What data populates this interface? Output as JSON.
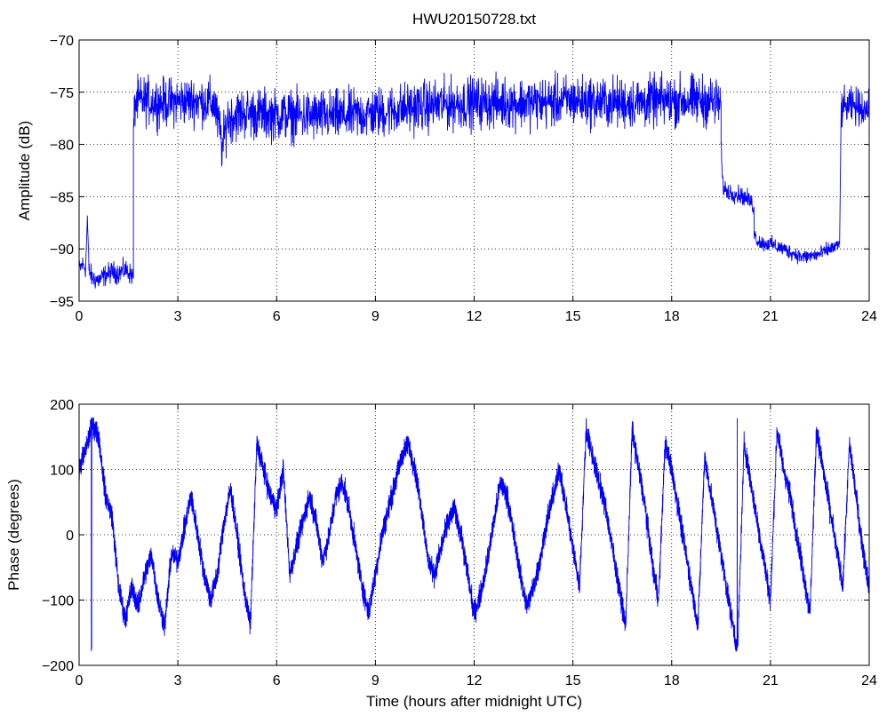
{
  "chart_data": [
    {
      "type": "line",
      "title": "HWU20150728.txt",
      "xlabel": "",
      "ylabel": "Amplitude (dB)",
      "xlim": [
        0,
        24
      ],
      "ylim": [
        -95,
        -70
      ],
      "xticks": [
        0,
        3,
        6,
        9,
        12,
        15,
        18,
        21,
        24
      ],
      "yticks": [
        -95,
        -90,
        -85,
        -80,
        -75,
        -70
      ],
      "grid": true,
      "color": "#0000ff",
      "series": [
        {
          "segments": [
            {
              "x": [
                0.0,
                0.1,
                0.2,
                0.25,
                0.3,
                0.4,
                0.6,
                0.8,
                1.0,
                1.2,
                1.4,
                1.6,
                1.65
              ],
              "y": [
                -92.0,
                -91.5,
                -91.8,
                -87.0,
                -92.0,
                -92.8,
                -93.0,
                -92.5,
                -92.2,
                -92.3,
                -92.0,
                -92.5,
                -92.8
              ],
              "noise": 0.7
            },
            {
              "x": [
                1.65,
                1.7,
                2.0,
                2.5,
                3.0,
                3.5,
                4.0,
                4.15
              ],
              "y": [
                -79.0,
                -76.0,
                -75.8,
                -76.0,
                -75.9,
                -75.8,
                -76.0,
                -76.2
              ],
              "noise": 1.6
            },
            {
              "x": [
                4.15,
                4.3,
                4.35,
                4.5,
                5.0,
                6.0,
                7.0,
                8.0,
                9.0,
                10.0,
                11.0,
                12.0,
                13.0,
                14.0,
                15.0,
                16.0,
                17.0,
                18.0,
                19.0,
                19.5
              ],
              "y": [
                -77.0,
                -79.0,
                -80.5,
                -77.5,
                -77.0,
                -77.2,
                -77.3,
                -77.3,
                -77.0,
                -76.5,
                -76.2,
                -76.0,
                -76.0,
                -76.0,
                -75.8,
                -76.0,
                -76.0,
                -75.8,
                -75.8,
                -76.0
              ],
              "noise": 1.7
            },
            {
              "x": [
                19.5,
                19.55,
                19.7,
                20.0,
                20.2,
                20.4,
                20.5
              ],
              "y": [
                -80.0,
                -84.0,
                -84.5,
                -84.8,
                -85.0,
                -85.5,
                -86.0
              ],
              "noise": 0.6
            },
            {
              "x": [
                20.5,
                20.6,
                20.8,
                21.0,
                21.2,
                21.4,
                21.6,
                22.0,
                22.5,
                22.8,
                23.0,
                23.1
              ],
              "y": [
                -88.5,
                -89.2,
                -89.5,
                -89.5,
                -89.8,
                -90.0,
                -90.3,
                -90.8,
                -90.5,
                -90.0,
                -89.8,
                -89.5
              ],
              "noise": 0.5
            },
            {
              "x": [
                23.15,
                23.2,
                23.5,
                23.8,
                24.0
              ],
              "y": [
                -77.0,
                -76.5,
                -76.3,
                -76.5,
                -76.8
              ],
              "noise": 1.2
            }
          ]
        }
      ]
    },
    {
      "type": "line",
      "title": "",
      "xlabel": "Time (hours after midnight UTC)",
      "ylabel": "Phase (degrees)",
      "xlim": [
        0,
        24
      ],
      "ylim": [
        -200,
        200
      ],
      "xticks": [
        0,
        3,
        6,
        9,
        12,
        15,
        18,
        21,
        24
      ],
      "yticks": [
        -200,
        -100,
        0,
        100,
        200
      ],
      "grid": true,
      "wrap": [
        -180,
        180
      ],
      "color": "#0000ff",
      "series": [
        {
          "x": [
            0.0,
            0.2,
            0.4,
            0.6,
            0.8,
            1.0,
            1.2,
            1.4,
            1.6,
            1.8,
            2.0,
            2.2,
            2.4,
            2.6,
            2.8,
            3.0,
            3.2,
            3.4,
            3.6,
            3.8,
            4.0,
            4.2,
            4.4,
            4.6,
            4.8,
            5.0,
            5.2,
            5.4,
            5.6,
            5.8,
            6.0,
            6.2,
            6.4,
            6.6,
            6.8,
            7.0,
            7.2,
            7.4,
            7.6,
            7.8,
            8.0,
            8.2,
            8.4,
            8.6,
            8.8,
            9.0,
            9.2,
            9.4,
            9.6,
            9.8,
            10.0,
            10.2,
            10.4,
            10.6,
            10.8,
            11.0,
            11.2,
            11.4,
            11.6,
            11.8,
            12.0,
            12.2,
            12.4,
            12.6,
            12.8,
            13.0,
            13.2,
            13.4,
            13.6,
            13.8,
            14.0,
            14.2,
            14.4,
            14.6,
            14.8,
            15.0,
            15.2,
            15.4,
            15.6,
            15.8,
            16.0,
            16.2,
            16.4,
            16.6,
            16.8,
            17.0,
            17.2,
            17.4,
            17.6,
            17.8,
            18.0,
            18.2,
            18.4,
            18.6,
            18.8,
            19.0,
            19.2,
            19.4,
            19.6,
            19.8,
            20.0,
            20.2,
            20.4,
            20.6,
            20.8,
            21.0,
            21.2,
            21.4,
            21.6,
            21.8,
            22.0,
            22.2,
            22.4,
            22.6,
            22.8,
            23.0,
            23.2,
            23.4,
            23.6,
            23.8,
            24.0
          ],
          "y": [
            100,
            130,
            170,
            150,
            60,
            30,
            -80,
            -130,
            -80,
            -110,
            -60,
            -30,
            -100,
            -140,
            -30,
            -40,
            10,
            60,
            0,
            -60,
            -100,
            -60,
            20,
            70,
            0,
            -80,
            -140,
            140,
            100,
            60,
            40,
            100,
            -60,
            -20,
            20,
            60,
            20,
            -40,
            0,
            60,
            80,
            40,
            -20,
            -80,
            -120,
            -60,
            0,
            40,
            80,
            120,
            140,
            100,
            40,
            -40,
            -60,
            -20,
            20,
            40,
            0,
            -60,
            -120,
            -90,
            -40,
            20,
            80,
            60,
            0,
            -60,
            -110,
            -80,
            -40,
            20,
            60,
            100,
            40,
            -20,
            -80,
            160,
            120,
            80,
            40,
            -20,
            -80,
            -140,
            160,
            100,
            40,
            -40,
            -100,
            140,
            100,
            40,
            -20,
            -80,
            -140,
            120,
            60,
            0,
            -60,
            -120,
            -180,
            140,
            80,
            20,
            -40,
            -100,
            160,
            100,
            60,
            0,
            -60,
            -120,
            160,
            100,
            40,
            -20,
            -80,
            140,
            60,
            -20,
            -80
          ],
          "noise": 12
        }
      ]
    }
  ]
}
